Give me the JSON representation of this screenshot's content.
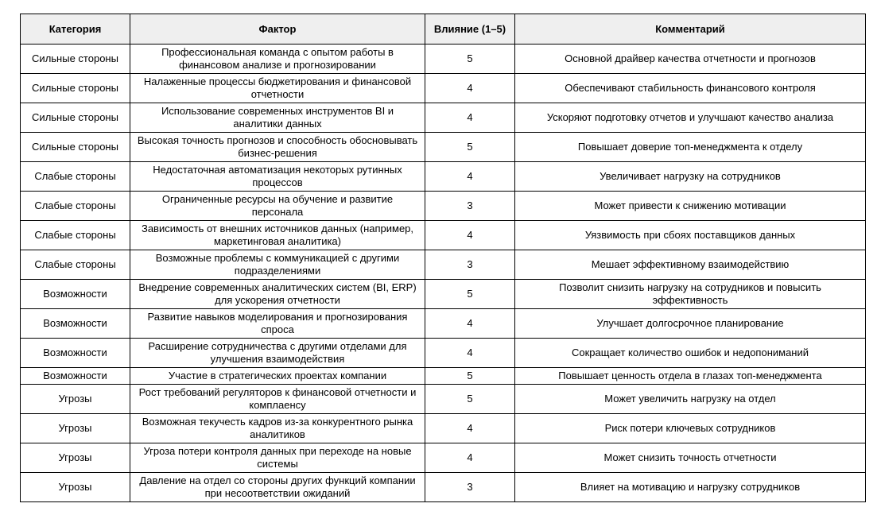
{
  "colors": {
    "border": "#000000",
    "header_bg": "#efefef",
    "text": "#000000",
    "page_bg": "#ffffff"
  },
  "table": {
    "headers": [
      {
        "label": "Категория"
      },
      {
        "label": "Фактор"
      },
      {
        "label": "Влияние (1–5)"
      },
      {
        "label": "Комментарий"
      }
    ],
    "rows": [
      {
        "category": "Сильные стороны",
        "factor": "Профессиональная команда с опытом работы в финансовом анализе и прогнозировании",
        "impact": 5,
        "comment": "Основной драйвер качества отчетности и прогнозов"
      },
      {
        "category": "Сильные стороны",
        "factor": "Налаженные процессы бюджетирования и финансовой отчетности",
        "impact": 4,
        "comment": "Обеспечивают стабильность финансового контроля"
      },
      {
        "category": "Сильные стороны",
        "factor": "Использование современных инструментов BI и аналитики данных",
        "impact": 4,
        "comment": "Ускоряют подготовку отчетов и улучшают качество анализа"
      },
      {
        "category": "Сильные стороны",
        "factor": "Высокая точность прогнозов и способность обосновывать бизнес-решения",
        "impact": 5,
        "comment": "Повышает доверие топ-менеджмента к отделу"
      },
      {
        "category": "Слабые стороны",
        "factor": "Недостаточная автоматизация некоторых рутинных процессов",
        "impact": 4,
        "comment": "Увеличивает нагрузку на сотрудников"
      },
      {
        "category": "Слабые стороны",
        "factor": "Ограниченные ресурсы на обучение и развитие персонала",
        "impact": 3,
        "comment": "Может привести к снижению мотивации"
      },
      {
        "category": "Слабые стороны",
        "factor": "Зависимость от внешних источников данных (например, маркетинговая аналитика)",
        "impact": 4,
        "comment": "Уязвимость при сбоях поставщиков данных"
      },
      {
        "category": "Слабые стороны",
        "factor": "Возможные проблемы с коммуникацией с другими подразделениями",
        "impact": 3,
        "comment": "Мешает эффективному взаимодействию"
      },
      {
        "category": "Возможности",
        "factor": "Внедрение современных аналитических систем (BI, ERP) для ускорения отчетности",
        "impact": 5,
        "comment": "Позволит снизить нагрузку на сотрудников и повысить эффективность"
      },
      {
        "category": "Возможности",
        "factor": "Развитие навыков моделирования и прогнозирования спроса",
        "impact": 4,
        "comment": "Улучшает долгосрочное планирование"
      },
      {
        "category": "Возможности",
        "factor": "Расширение сотрудничества с другими отделами для улучшения взаимодействия",
        "impact": 4,
        "comment": "Сокращает количество ошибок и недопониманий"
      },
      {
        "category": "Возможности",
        "factor": "Участие в стратегических проектах компании",
        "impact": 5,
        "comment": "Повышает ценность отдела в глазах топ-менеджмента"
      },
      {
        "category": "Угрозы",
        "factor": "Рост требований регуляторов к финансовой отчетности и комплаенсу",
        "impact": 5,
        "comment": "Может увеличить нагрузку на отдел"
      },
      {
        "category": "Угрозы",
        "factor": "Возможная текучесть кадров из-за конкурентного рынка аналитиков",
        "impact": 4,
        "comment": "Риск потери ключевых сотрудников"
      },
      {
        "category": "Угрозы",
        "factor": "Угроза потери контроля данных при переходе на новые системы",
        "impact": 4,
        "comment": "Может снизить точность отчетности"
      },
      {
        "category": "Угрозы",
        "factor": "Давление на отдел со стороны других функций компании при несоответствии ожиданий",
        "impact": 3,
        "comment": "Влияет на мотивацию и нагрузку сотрудников"
      }
    ]
  }
}
